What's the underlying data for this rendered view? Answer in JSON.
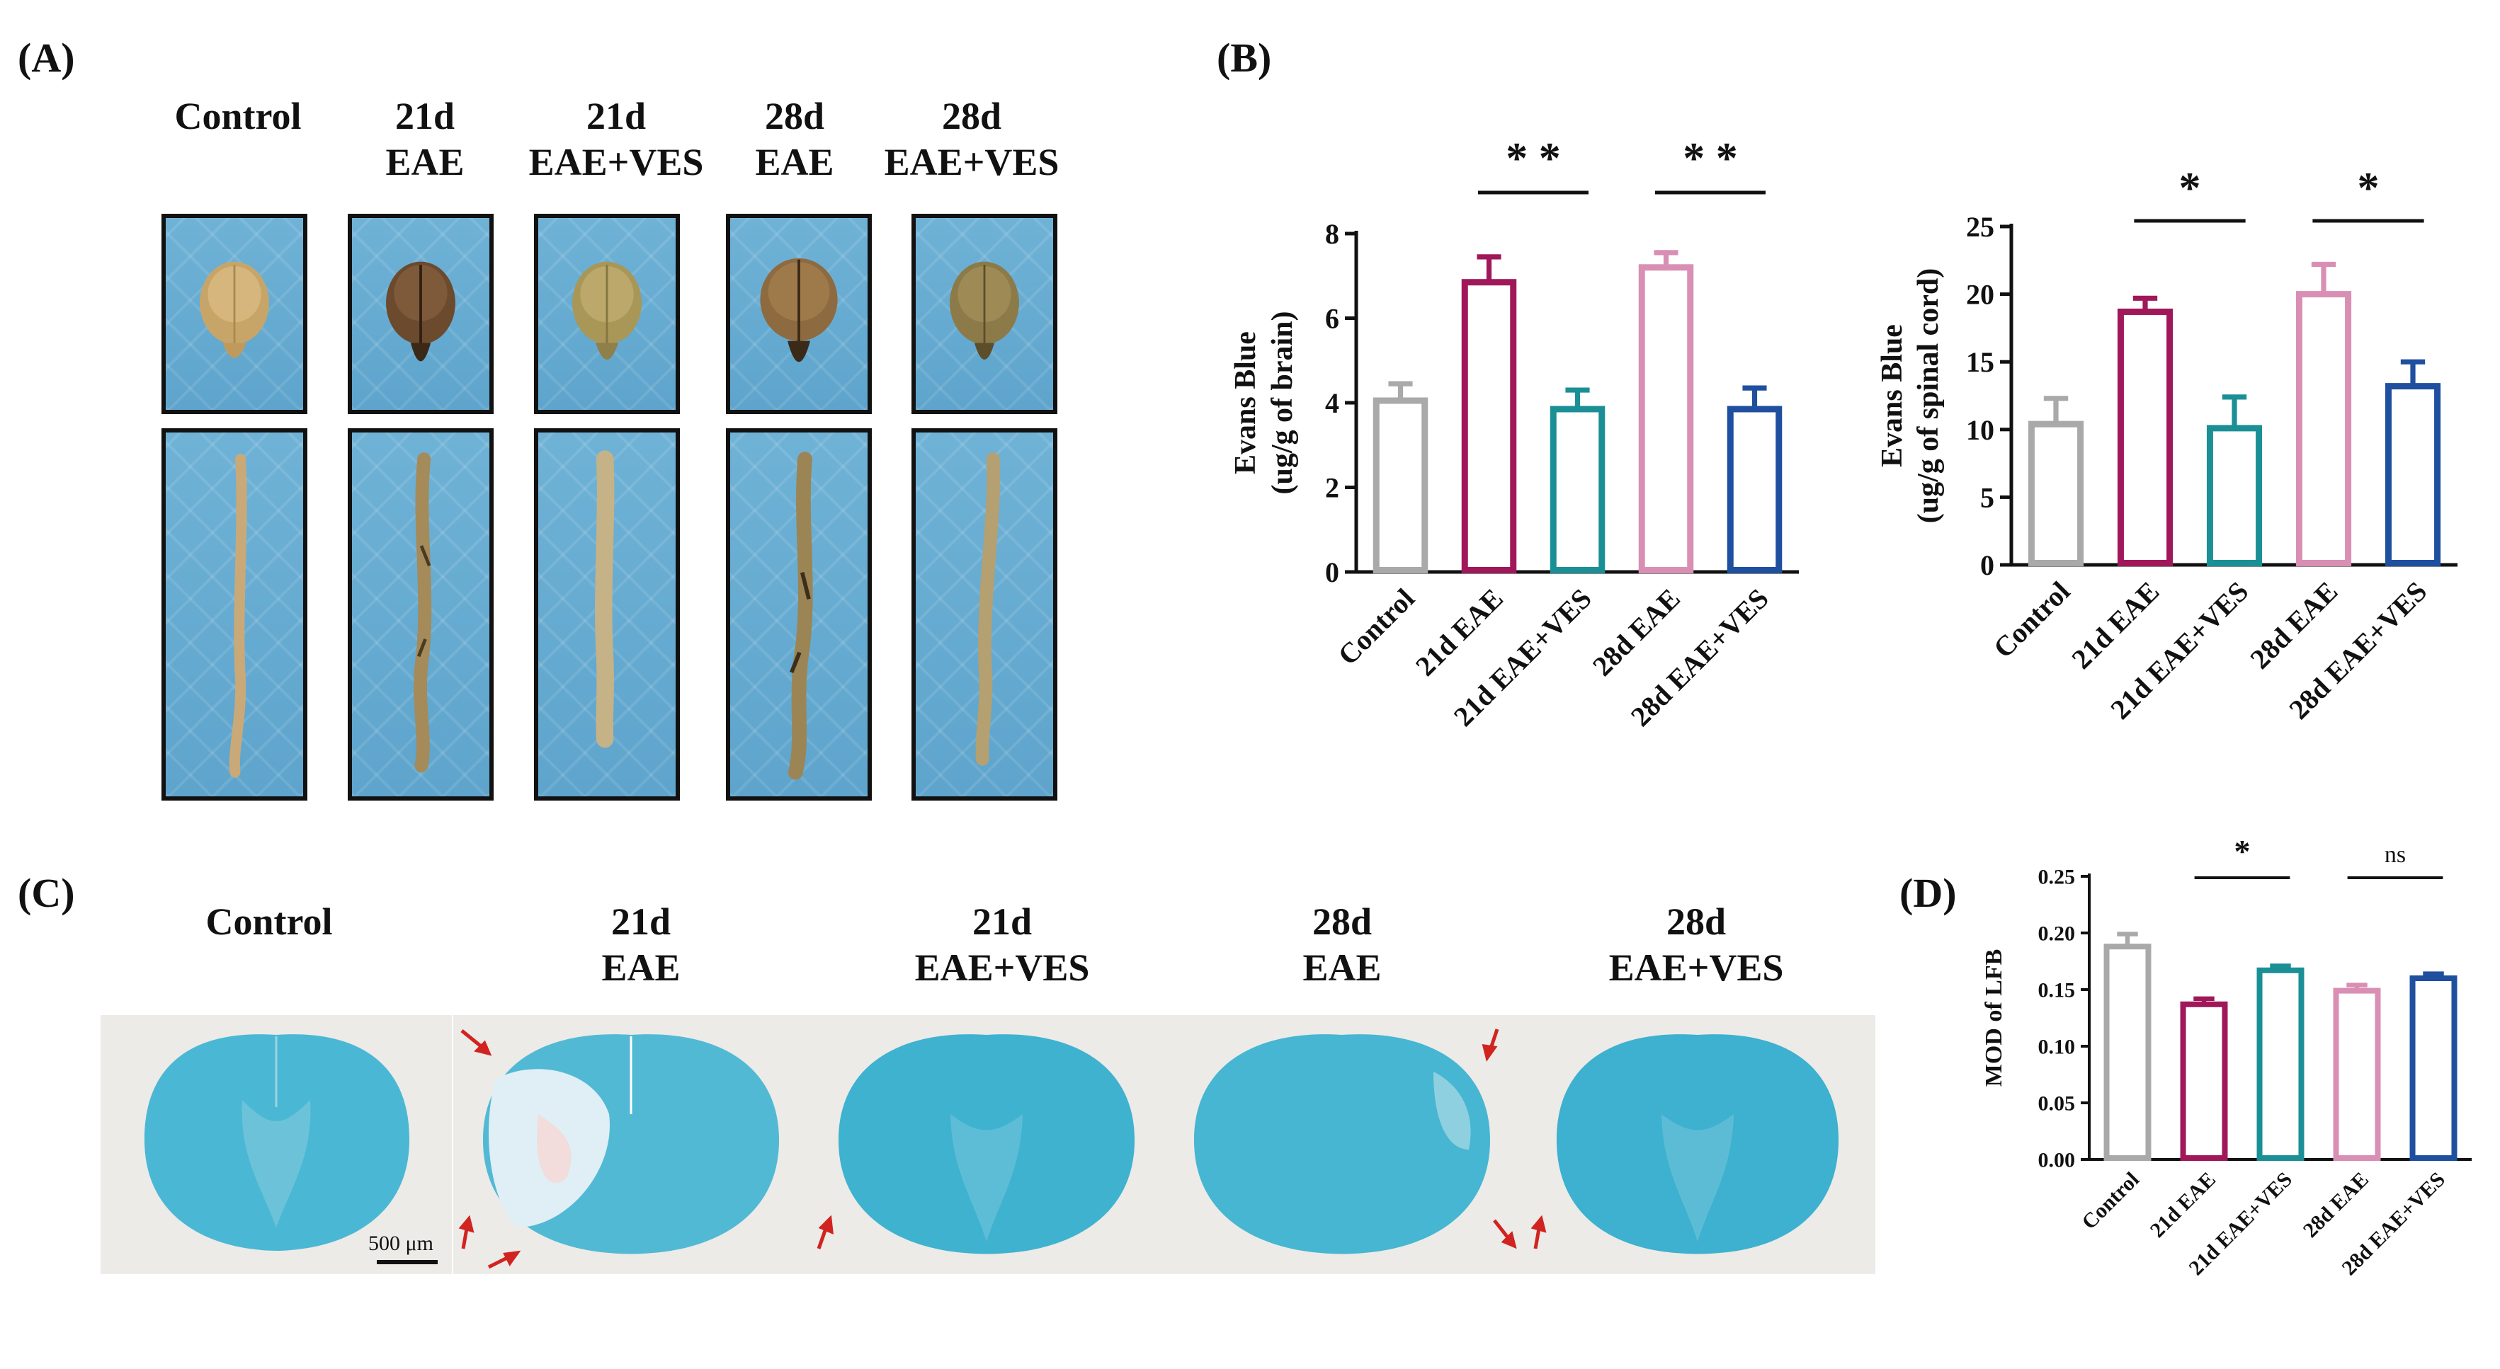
{
  "panels": {
    "A": {
      "letter": "(A)",
      "columns": [
        {
          "line1": "",
          "line2": "Control"
        },
        {
          "line1": "21d",
          "line2": "EAE"
        },
        {
          "line1": "21d",
          "line2": "EAE+VES"
        },
        {
          "line1": "28d",
          "line2": "EAE"
        },
        {
          "line1": "28d",
          "line2": "EAE+VES"
        }
      ]
    },
    "B": {
      "letter": "(B)"
    },
    "C": {
      "letter": "(C)",
      "columns": [
        {
          "line1": "",
          "line2": "Control"
        },
        {
          "line1": "21d",
          "line2": "EAE"
        },
        {
          "line1": "21d",
          "line2": "EAE+VES"
        },
        {
          "line1": "28d",
          "line2": "EAE"
        },
        {
          "line1": "28d",
          "line2": "EAE+VES"
        }
      ],
      "scale_bar": "500 μm"
    },
    "D": {
      "letter": "(D)"
    }
  },
  "colors": {
    "control": "#a9a9a9",
    "eae21": "#a0185a",
    "ves21": "#1b8f96",
    "eae28": "#d98fb4",
    "ves28": "#1f4f9f",
    "arrow": "#d1231f",
    "stain": "#41b4cf"
  },
  "chart_data": [
    {
      "id": "brain",
      "type": "bar",
      "categories": [
        "Control",
        "21d EAE",
        "21d EAE+VES",
        "28d EAE",
        "28d EAE+VES"
      ],
      "values": [
        4.05,
        6.85,
        3.85,
        7.2,
        3.85
      ],
      "errors": [
        0.4,
        0.6,
        0.45,
        0.35,
        0.5
      ],
      "ylabel_line1": "Evans Blue",
      "ylabel_line2": "(ug/g of brain)",
      "ylim": [
        0,
        8
      ],
      "yticks": [
        0,
        2,
        4,
        6,
        8
      ],
      "significance": [
        {
          "from": 1,
          "to": 2,
          "label": "* *"
        },
        {
          "from": 3,
          "to": 4,
          "label": "* *"
        }
      ]
    },
    {
      "id": "spinal",
      "type": "bar",
      "categories": [
        "Control",
        "21d EAE",
        "21d EAE+VES",
        "28d EAE",
        "28d EAE+VES"
      ],
      "values": [
        10.4,
        18.7,
        10.1,
        20.0,
        13.2
      ],
      "errors": [
        1.9,
        1.0,
        2.3,
        2.2,
        1.8
      ],
      "ylabel_line1": "Evans Blue",
      "ylabel_line2": "(ug/g of spinal cord)",
      "ylim": [
        0,
        25
      ],
      "yticks": [
        0,
        5,
        10,
        15,
        20,
        25
      ],
      "significance": [
        {
          "from": 1,
          "to": 2,
          "label": "*"
        },
        {
          "from": 3,
          "to": 4,
          "label": "*"
        }
      ]
    },
    {
      "id": "lfb",
      "type": "bar",
      "categories": [
        "Control",
        "21d EAE",
        "21d EAE+VES",
        "28d EAE",
        "28d EAE+VES"
      ],
      "values": [
        0.188,
        0.137,
        0.167,
        0.149,
        0.16
      ],
      "errors": [
        0.011,
        0.005,
        0.004,
        0.005,
        0.004
      ],
      "ylabel_line1": "MOD of LFB",
      "ylabel_line2": "",
      "ylim": [
        0,
        0.25
      ],
      "yticks": [
        "0.00",
        "0.05",
        "0.10",
        "0.15",
        "0.20",
        "0.25"
      ],
      "significance": [
        {
          "from": 1,
          "to": 2,
          "label": "*"
        },
        {
          "from": 3,
          "to": 4,
          "label": "ns"
        }
      ]
    }
  ]
}
